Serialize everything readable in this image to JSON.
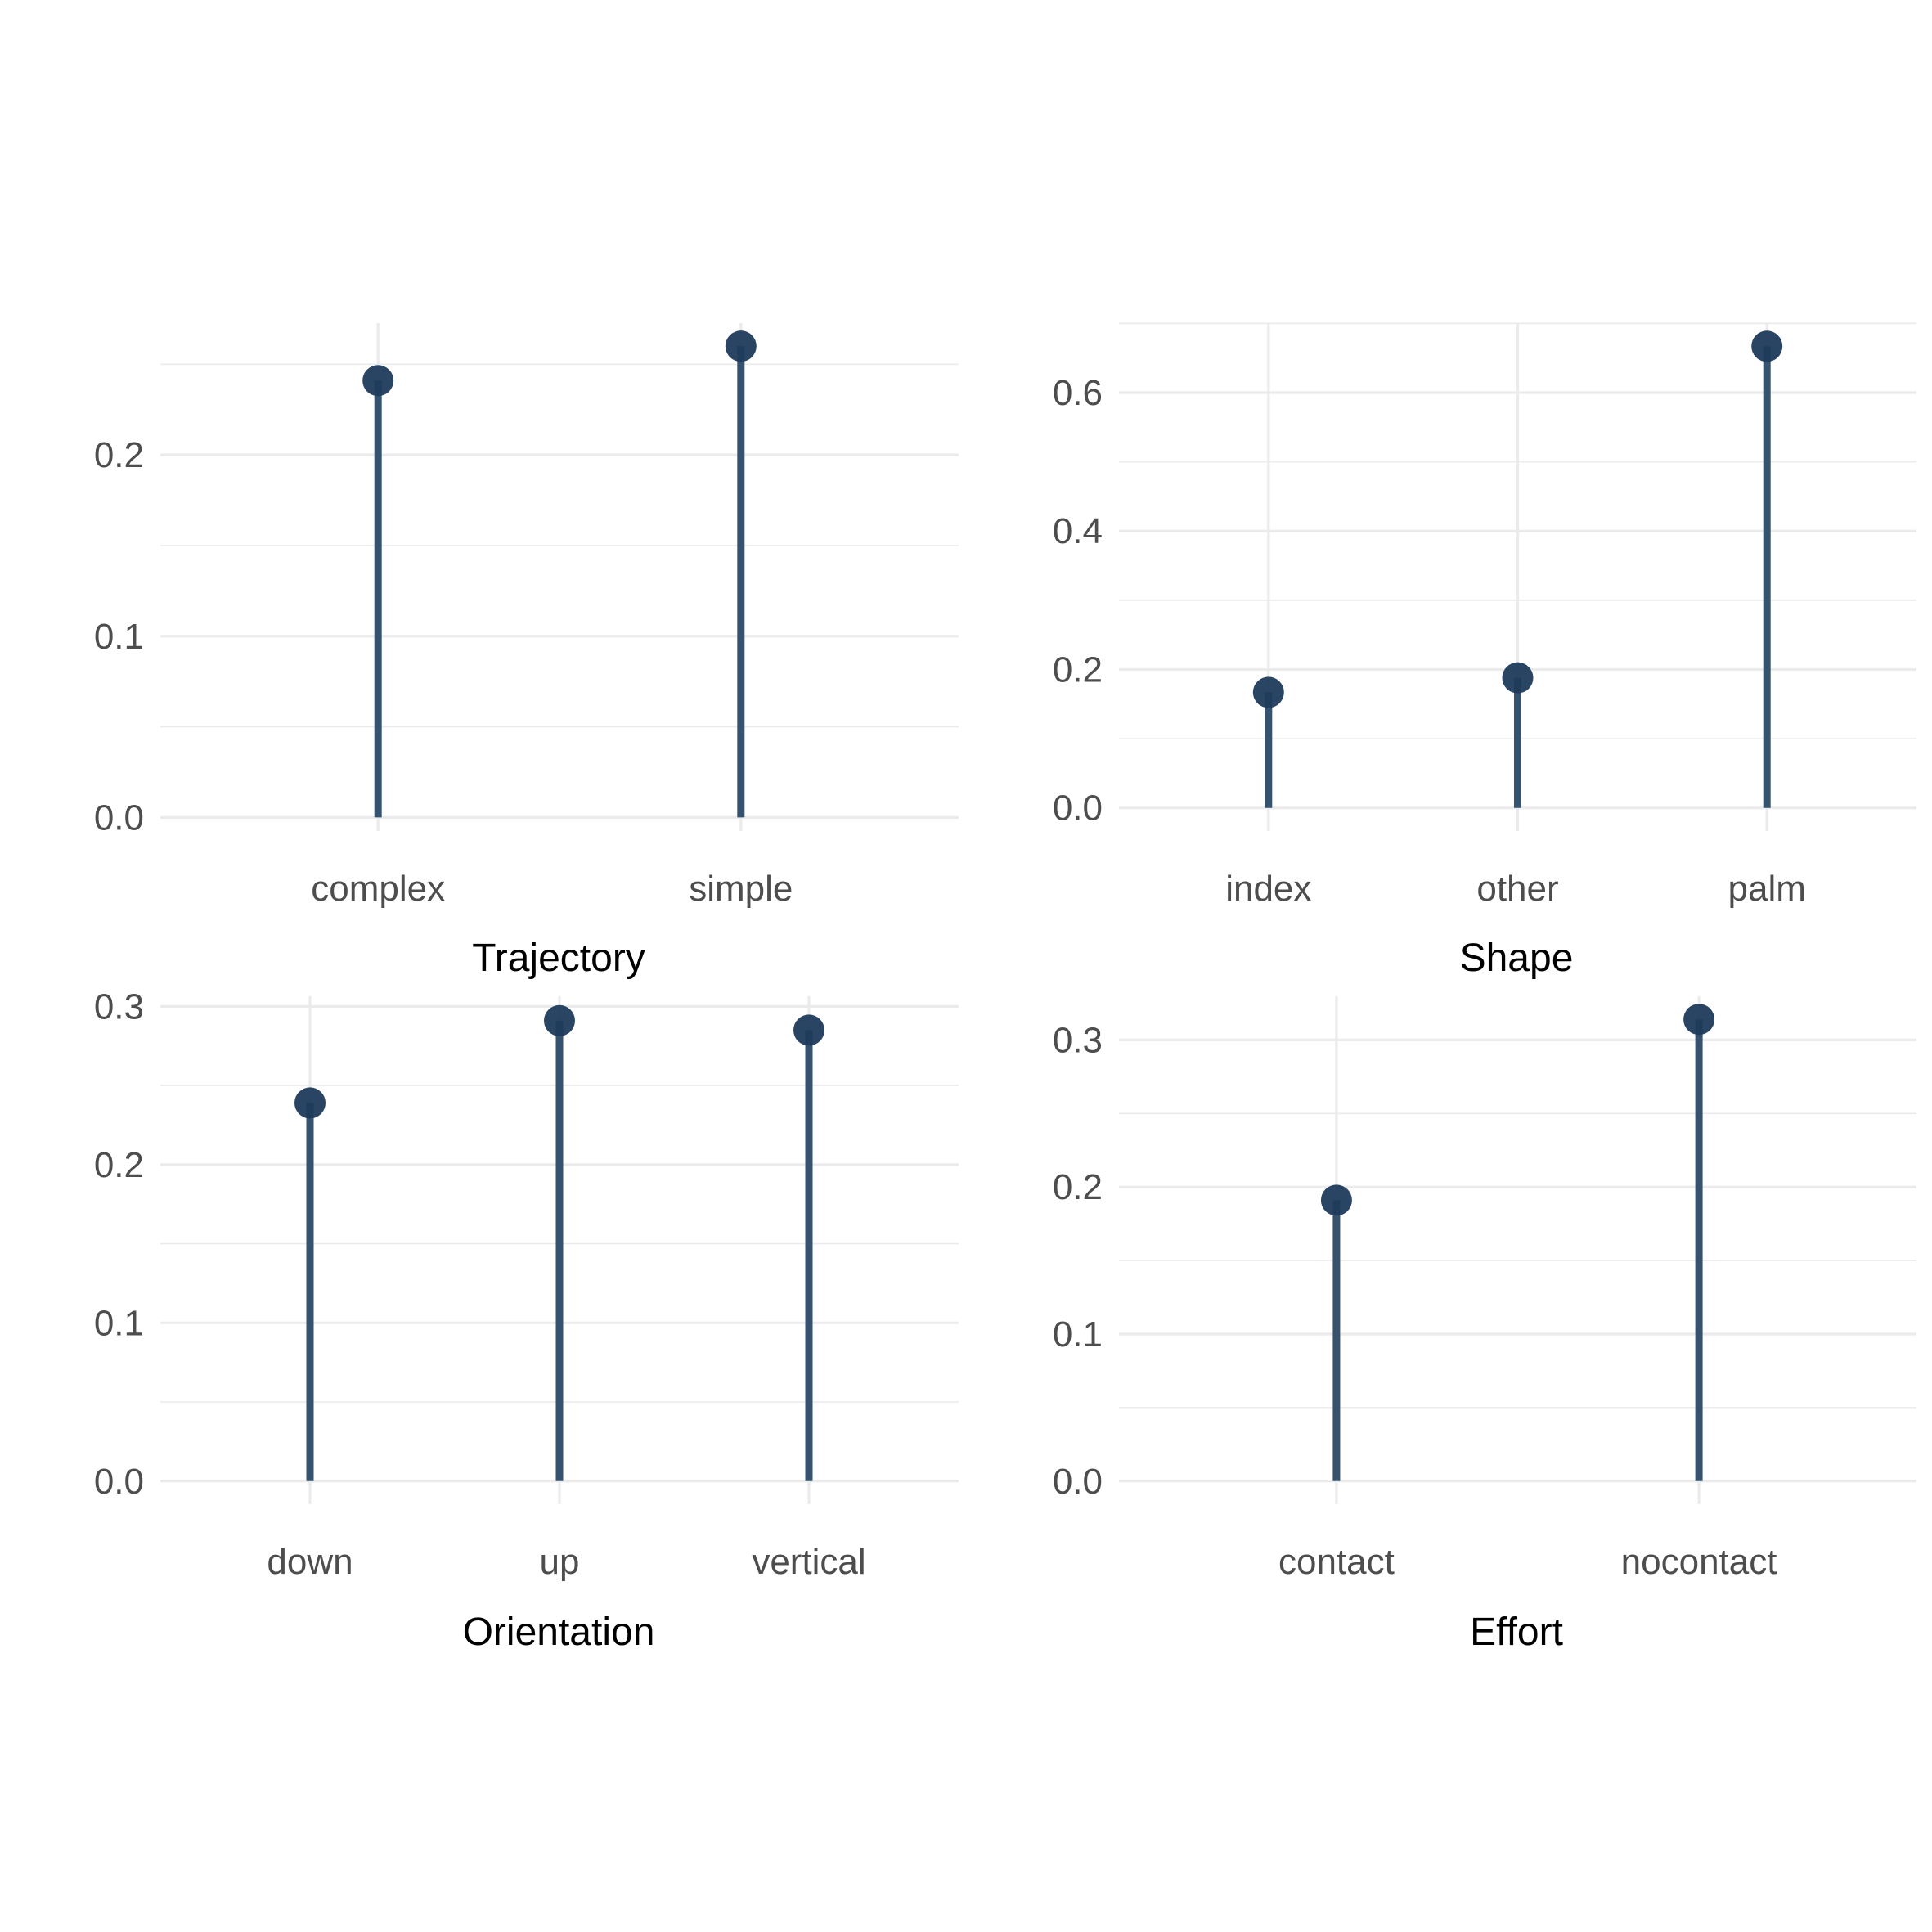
{
  "colors": {
    "stem": "#35526f",
    "point": "#1f3b5c",
    "grid": "#ebebeb",
    "tick_text": "#4d4d4d",
    "title_text": "#000000",
    "background": "#ffffff"
  },
  "chart_data": [
    {
      "type": "lollipop",
      "xlabel": "Trajectory",
      "ylabel": "",
      "categories": [
        "complex",
        "simple"
      ],
      "values": [
        0.241,
        0.26
      ],
      "ylim": [
        0,
        0.26
      ],
      "yticks": [
        0.0,
        0.1,
        0.2
      ],
      "yticklabels": [
        "0.0",
        "0.1",
        "0.2"
      ],
      "grid": true
    },
    {
      "type": "lollipop",
      "xlabel": "Shape",
      "ylabel": "",
      "categories": [
        "index",
        "other",
        "palm"
      ],
      "values": [
        0.167,
        0.188,
        0.667
      ],
      "ylim": [
        0,
        0.667
      ],
      "yticks": [
        0.0,
        0.2,
        0.4,
        0.6
      ],
      "yticklabels": [
        "0.0",
        "0.2",
        "0.4",
        "0.6"
      ],
      "grid": true
    },
    {
      "type": "lollipop",
      "xlabel": "Orientation",
      "ylabel": "",
      "categories": [
        "down",
        "up",
        "vertical"
      ],
      "values": [
        0.239,
        0.291,
        0.285
      ],
      "ylim": [
        0,
        0.291
      ],
      "yticks": [
        0.0,
        0.1,
        0.2,
        0.3
      ],
      "yticklabels": [
        "0.0",
        "0.1",
        "0.2",
        "0.3"
      ],
      "grid": true
    },
    {
      "type": "lollipop",
      "xlabel": "Effort",
      "ylabel": "",
      "categories": [
        "contact",
        "nocontact"
      ],
      "values": [
        0.191,
        0.314
      ],
      "ylim": [
        0,
        0.314
      ],
      "yticks": [
        0.0,
        0.1,
        0.2,
        0.3
      ],
      "yticklabels": [
        "0.0",
        "0.1",
        "0.2",
        "0.3"
      ],
      "grid": true
    }
  ]
}
